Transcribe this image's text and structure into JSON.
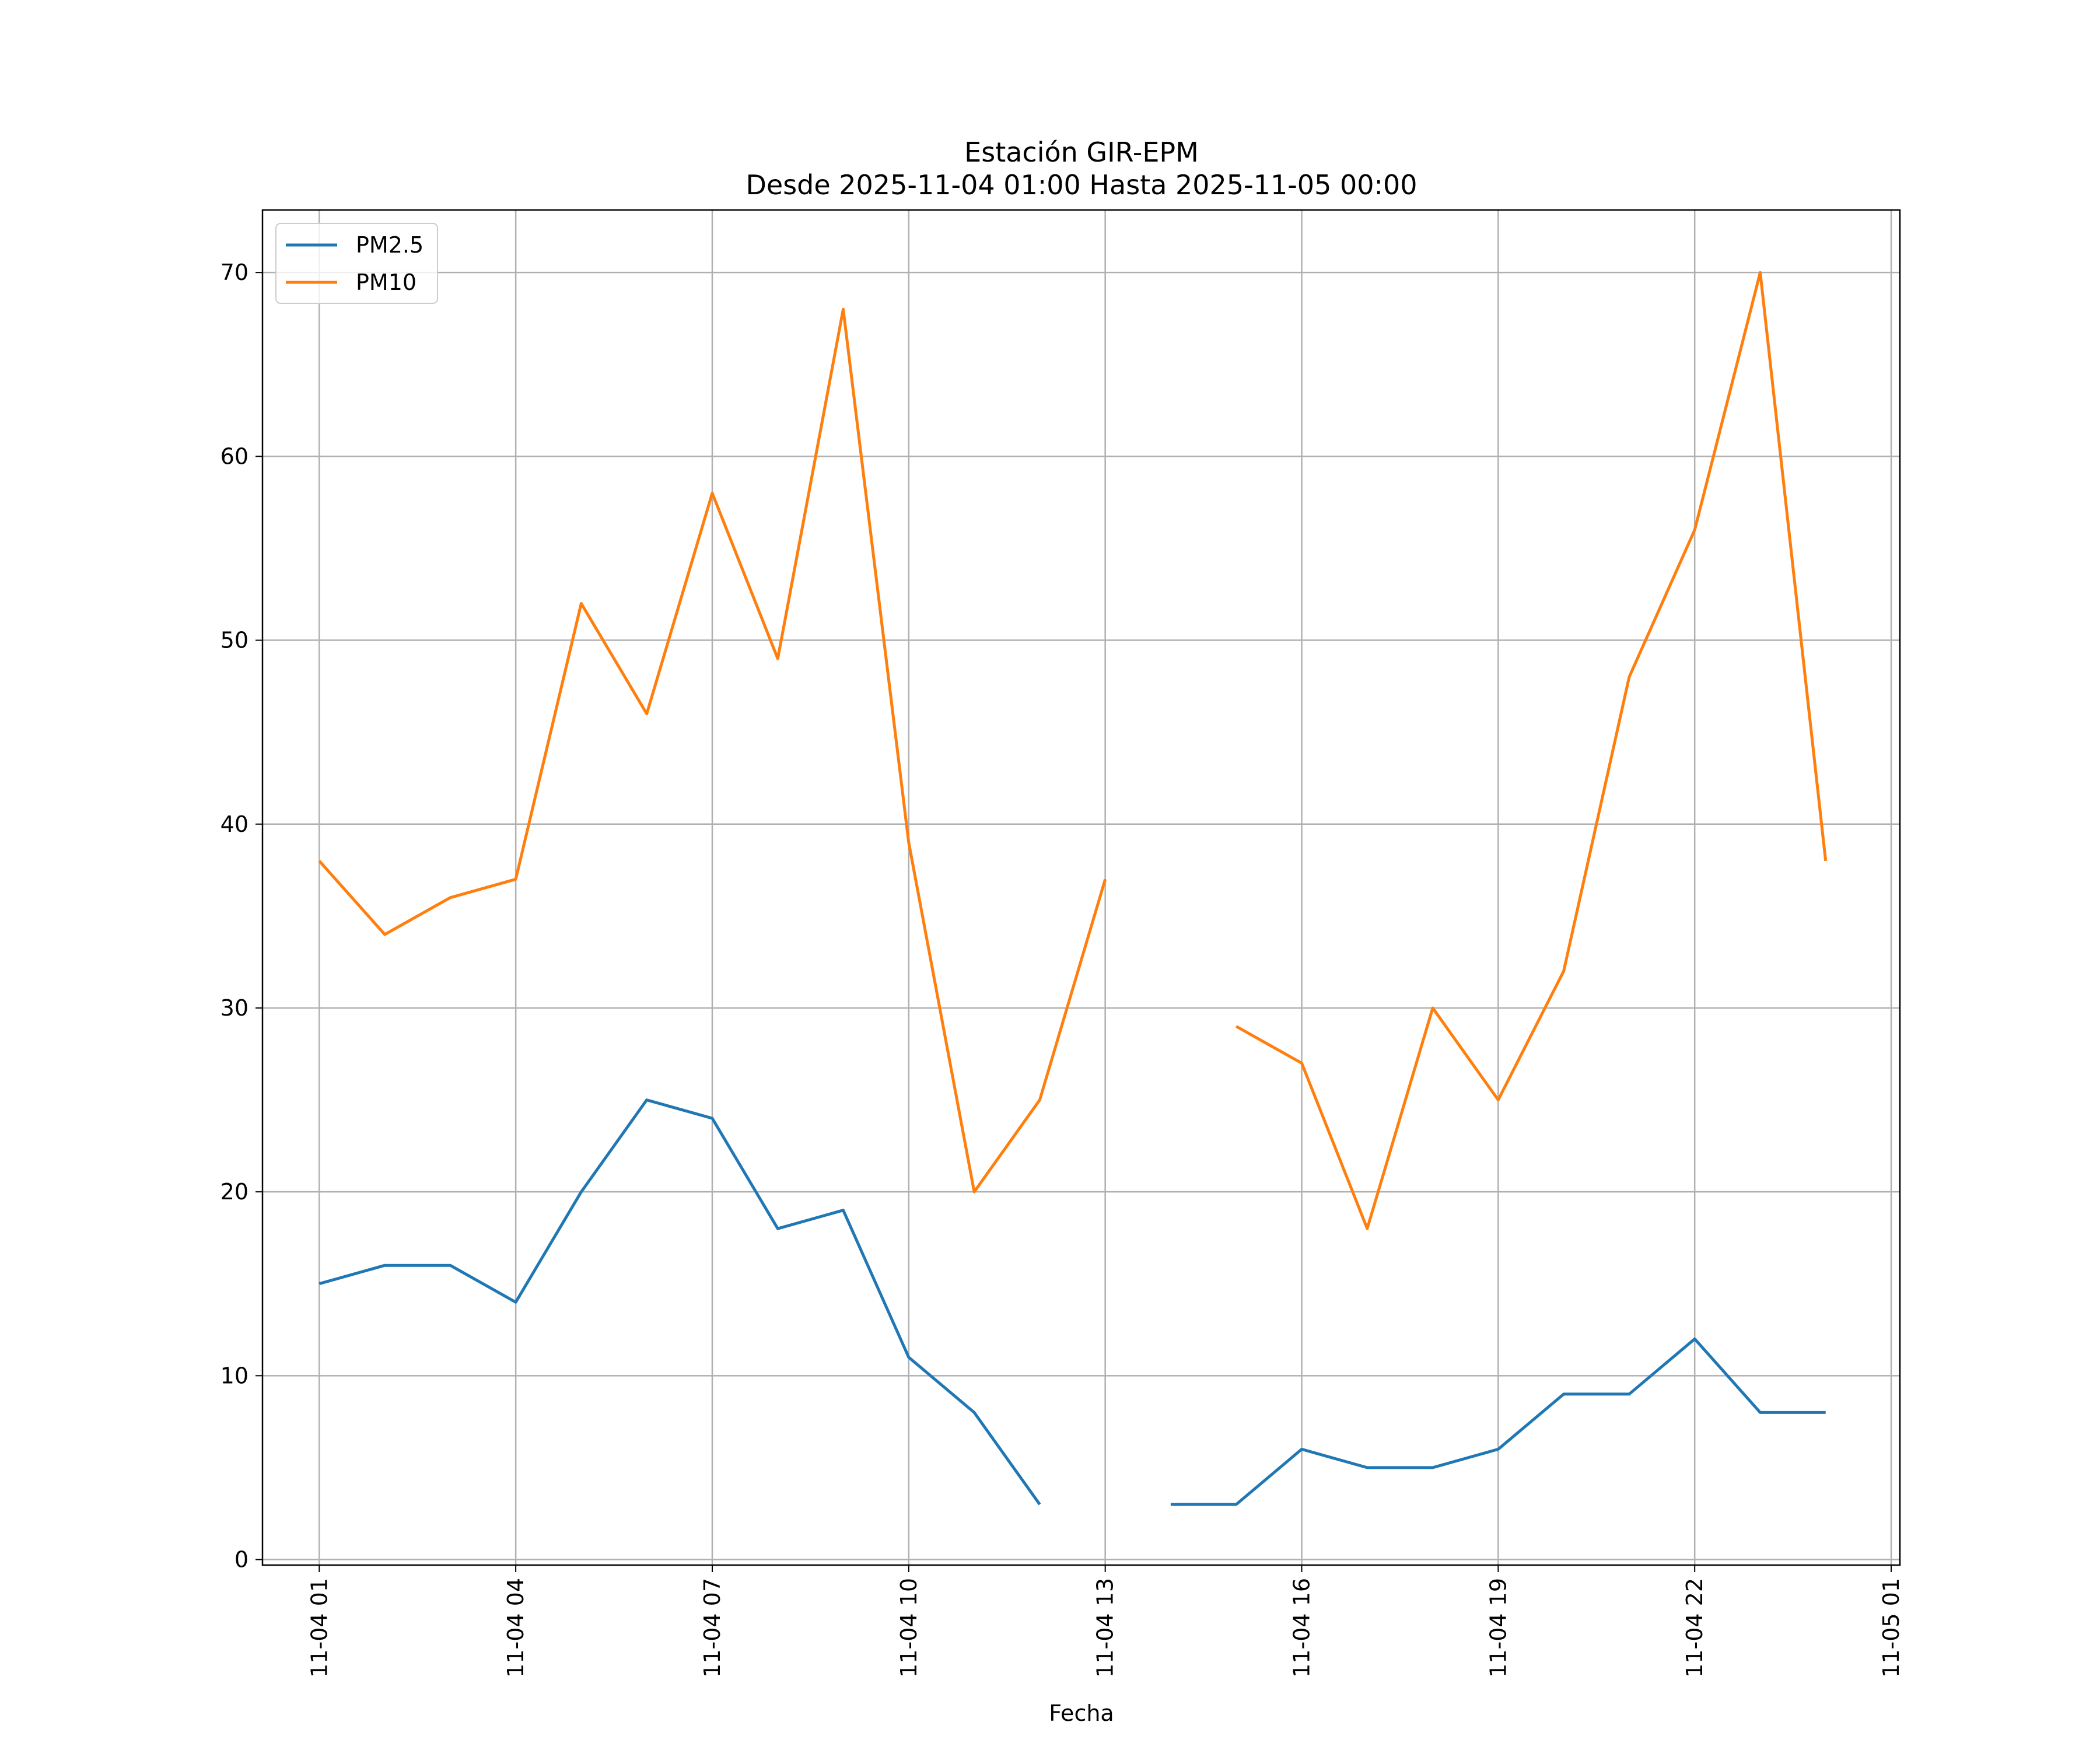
{
  "chart_data": {
    "type": "line",
    "title": "Estación GIR-EPM",
    "subtitle": "Desde 2025-11-04 01:00 Hasta 2025-11-05 00:00",
    "xlabel": "Fecha",
    "ylabel": "",
    "x_ticks": [
      "11-04 01",
      "11-04 04",
      "11-04 07",
      "11-04 10",
      "11-04 13",
      "11-04 16",
      "11-04 19",
      "11-04 22",
      "11-05 01"
    ],
    "y_ticks": [
      0,
      10,
      20,
      30,
      40,
      50,
      60,
      70
    ],
    "xlim": [
      "2025-11-04 00:08",
      "2025-11-05 01:08"
    ],
    "ylim": [
      -0.3,
      73.4
    ],
    "grid": true,
    "legend_position": "top-left",
    "x": [
      "2025-11-04 01:00",
      "2025-11-04 02:00",
      "2025-11-04 03:00",
      "2025-11-04 04:00",
      "2025-11-04 05:00",
      "2025-11-04 06:00",
      "2025-11-04 07:00",
      "2025-11-04 08:00",
      "2025-11-04 09:00",
      "2025-11-04 10:00",
      "2025-11-04 11:00",
      "2025-11-04 12:00",
      "2025-11-04 13:00",
      "2025-11-04 14:00",
      "2025-11-04 15:00",
      "2025-11-04 16:00",
      "2025-11-04 17:00",
      "2025-11-04 18:00",
      "2025-11-04 19:00",
      "2025-11-04 20:00",
      "2025-11-04 21:00",
      "2025-11-04 22:00",
      "2025-11-04 23:00",
      "2025-11-05 00:00"
    ],
    "series": [
      {
        "name": "PM2.5",
        "color": "#1f77b4",
        "values": [
          15,
          16,
          16,
          14,
          20,
          25,
          24,
          18,
          19,
          11,
          8,
          3,
          null,
          3,
          3,
          6,
          5,
          5,
          6,
          9,
          9,
          12,
          8,
          8
        ]
      },
      {
        "name": "PM10",
        "color": "#ff7f0e",
        "values": [
          38,
          34,
          36,
          37,
          52,
          46,
          58,
          49,
          68,
          39,
          20,
          25,
          37,
          null,
          29,
          27,
          18,
          30,
          25,
          32,
          48,
          56,
          70,
          38
        ]
      }
    ]
  }
}
